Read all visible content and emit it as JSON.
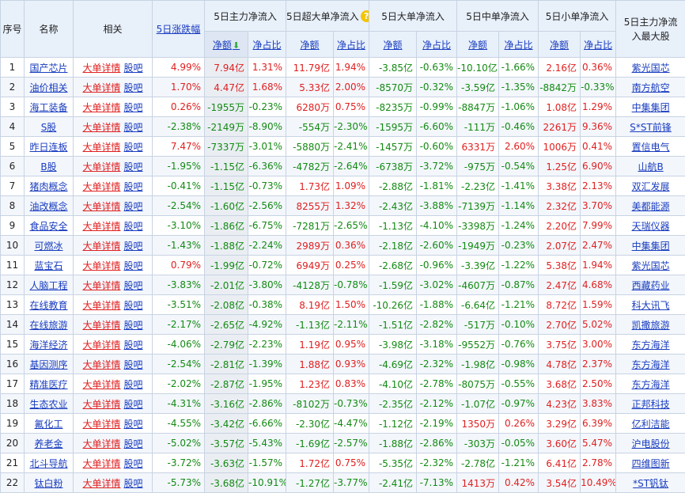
{
  "header": {
    "col_idx": "序号",
    "col_name": "名称",
    "col_related": "相关",
    "col_change": "5日涨跌幅",
    "col_main": "5日主力净流入",
    "col_super": "5日超大单净流入",
    "col_big": "5日大单净流入",
    "col_mid": "5日中单净流入",
    "col_small": "5日小单净流入",
    "col_top": "5日主力净流入最大股",
    "sub_amount": "净额",
    "sub_ratio": "净占比",
    "help_icon": "?",
    "sort_icon": "arrow-down-icon"
  },
  "colors": {
    "up": "#e02020",
    "down": "#138a13",
    "link": "#1a3dbf",
    "header_bg": "#e8f0fa",
    "help": "#f5c400"
  },
  "rows": [
    {
      "idx": "1",
      "name": "国产芯片",
      "detail": "大单详情",
      "bar": "股吧",
      "change": "4.99%",
      "main_amt": "7.94亿",
      "main_pct": "1.31%",
      "super_amt": "11.79亿",
      "super_pct": "1.94%",
      "big_amt": "-3.85亿",
      "big_pct": "-0.63%",
      "mid_amt": "-10.10亿",
      "mid_pct": "-1.66%",
      "small_amt": "2.16亿",
      "small_pct": "0.36%",
      "top": "紫光国芯"
    },
    {
      "idx": "2",
      "name": "油价相关",
      "detail": "大单详情",
      "bar": "股吧",
      "change": "1.70%",
      "main_amt": "4.47亿",
      "main_pct": "1.68%",
      "super_amt": "5.33亿",
      "super_pct": "2.00%",
      "big_amt": "-8570万",
      "big_pct": "-0.32%",
      "mid_amt": "-3.59亿",
      "mid_pct": "-1.35%",
      "small_amt": "-8842万",
      "small_pct": "-0.33%",
      "top": "南方航空"
    },
    {
      "idx": "3",
      "name": "海工装备",
      "detail": "大单详情",
      "bar": "股吧",
      "change": "0.26%",
      "main_amt": "-1955万",
      "main_pct": "-0.23%",
      "super_amt": "6280万",
      "super_pct": "0.75%",
      "big_amt": "-8235万",
      "big_pct": "-0.99%",
      "mid_amt": "-8847万",
      "mid_pct": "-1.06%",
      "small_amt": "1.08亿",
      "small_pct": "1.29%",
      "top": "中集集团"
    },
    {
      "idx": "4",
      "name": "S股",
      "detail": "大单详情",
      "bar": "股吧",
      "change": "-2.38%",
      "main_amt": "-2149万",
      "main_pct": "-8.90%",
      "super_amt": "-554万",
      "super_pct": "-2.30%",
      "big_amt": "-1595万",
      "big_pct": "-6.60%",
      "mid_amt": "-111万",
      "mid_pct": "-0.46%",
      "small_amt": "2261万",
      "small_pct": "9.36%",
      "top": "S*ST前锋"
    },
    {
      "idx": "5",
      "name": "昨日连板",
      "detail": "大单详情",
      "bar": "股吧",
      "change": "7.47%",
      "main_amt": "-7337万",
      "main_pct": "-3.01%",
      "super_amt": "-5880万",
      "super_pct": "-2.41%",
      "big_amt": "-1457万",
      "big_pct": "-0.60%",
      "mid_amt": "6331万",
      "mid_pct": "2.60%",
      "small_amt": "1006万",
      "small_pct": "0.41%",
      "top": "置信电气"
    },
    {
      "idx": "6",
      "name": "B股",
      "detail": "大单详情",
      "bar": "股吧",
      "change": "-1.95%",
      "main_amt": "-1.15亿",
      "main_pct": "-6.36%",
      "super_amt": "-4782万",
      "super_pct": "-2.64%",
      "big_amt": "-6738万",
      "big_pct": "-3.72%",
      "mid_amt": "-975万",
      "mid_pct": "-0.54%",
      "small_amt": "1.25亿",
      "small_pct": "6.90%",
      "top": "山航B"
    },
    {
      "idx": "7",
      "name": "猪肉概念",
      "detail": "大单详情",
      "bar": "股吧",
      "change": "-0.41%",
      "main_amt": "-1.15亿",
      "main_pct": "-0.73%",
      "super_amt": "1.73亿",
      "super_pct": "1.09%",
      "big_amt": "-2.88亿",
      "big_pct": "-1.81%",
      "mid_amt": "-2.23亿",
      "mid_pct": "-1.41%",
      "small_amt": "3.38亿",
      "small_pct": "2.13%",
      "top": "双汇发展"
    },
    {
      "idx": "8",
      "name": "油改概念",
      "detail": "大单详情",
      "bar": "股吧",
      "change": "-2.54%",
      "main_amt": "-1.60亿",
      "main_pct": "-2.56%",
      "super_amt": "8255万",
      "super_pct": "1.32%",
      "big_amt": "-2.43亿",
      "big_pct": "-3.88%",
      "mid_amt": "-7139万",
      "mid_pct": "-1.14%",
      "small_amt": "2.32亿",
      "small_pct": "3.70%",
      "top": "美都能源"
    },
    {
      "idx": "9",
      "name": "食品安全",
      "detail": "大单详情",
      "bar": "股吧",
      "change": "-3.10%",
      "main_amt": "-1.86亿",
      "main_pct": "-6.75%",
      "super_amt": "-7281万",
      "super_pct": "-2.65%",
      "big_amt": "-1.13亿",
      "big_pct": "-4.10%",
      "mid_amt": "-3398万",
      "mid_pct": "-1.24%",
      "small_amt": "2.20亿",
      "small_pct": "7.99%",
      "top": "天瑞仪器"
    },
    {
      "idx": "10",
      "name": "可燃冰",
      "detail": "大单详情",
      "bar": "股吧",
      "change": "-1.43%",
      "main_amt": "-1.88亿",
      "main_pct": "-2.24%",
      "super_amt": "2989万",
      "super_pct": "0.36%",
      "big_amt": "-2.18亿",
      "big_pct": "-2.60%",
      "mid_amt": "-1949万",
      "mid_pct": "-0.23%",
      "small_amt": "2.07亿",
      "small_pct": "2.47%",
      "top": "中集集团"
    },
    {
      "idx": "11",
      "name": "蓝宝石",
      "detail": "大单详情",
      "bar": "股吧",
      "change": "0.79%",
      "main_amt": "-1.99亿",
      "main_pct": "-0.72%",
      "super_amt": "6949万",
      "super_pct": "0.25%",
      "big_amt": "-2.68亿",
      "big_pct": "-0.96%",
      "mid_amt": "-3.39亿",
      "mid_pct": "-1.22%",
      "small_amt": "5.38亿",
      "small_pct": "1.94%",
      "top": "紫光国芯"
    },
    {
      "idx": "12",
      "name": "人脑工程",
      "detail": "大单详情",
      "bar": "股吧",
      "change": "-3.83%",
      "main_amt": "-2.01亿",
      "main_pct": "-3.80%",
      "super_amt": "-4128万",
      "super_pct": "-0.78%",
      "big_amt": "-1.59亿",
      "big_pct": "-3.02%",
      "mid_amt": "-4607万",
      "mid_pct": "-0.87%",
      "small_amt": "2.47亿",
      "small_pct": "4.68%",
      "top": "西藏药业"
    },
    {
      "idx": "13",
      "name": "在线教育",
      "detail": "大单详情",
      "bar": "股吧",
      "change": "-3.51%",
      "main_amt": "-2.08亿",
      "main_pct": "-0.38%",
      "super_amt": "8.19亿",
      "super_pct": "1.50%",
      "big_amt": "-10.26亿",
      "big_pct": "-1.88%",
      "mid_amt": "-6.64亿",
      "mid_pct": "-1.21%",
      "small_amt": "8.72亿",
      "small_pct": "1.59%",
      "top": "科大讯飞"
    },
    {
      "idx": "14",
      "name": "在线旅游",
      "detail": "大单详情",
      "bar": "股吧",
      "change": "-2.17%",
      "main_amt": "-2.65亿",
      "main_pct": "-4.92%",
      "super_amt": "-1.13亿",
      "super_pct": "-2.11%",
      "big_amt": "-1.51亿",
      "big_pct": "-2.82%",
      "mid_amt": "-517万",
      "mid_pct": "-0.10%",
      "small_amt": "2.70亿",
      "small_pct": "5.02%",
      "top": "凯撒旅游"
    },
    {
      "idx": "15",
      "name": "海洋经济",
      "detail": "大单详情",
      "bar": "股吧",
      "change": "-4.06%",
      "main_amt": "-2.79亿",
      "main_pct": "-2.23%",
      "super_amt": "1.19亿",
      "super_pct": "0.95%",
      "big_amt": "-3.98亿",
      "big_pct": "-3.18%",
      "mid_amt": "-9552万",
      "mid_pct": "-0.76%",
      "small_amt": "3.75亿",
      "small_pct": "3.00%",
      "top": "东方海洋"
    },
    {
      "idx": "16",
      "name": "基因测序",
      "detail": "大单详情",
      "bar": "股吧",
      "change": "-2.54%",
      "main_amt": "-2.81亿",
      "main_pct": "-1.39%",
      "super_amt": "1.88亿",
      "super_pct": "0.93%",
      "big_amt": "-4.69亿",
      "big_pct": "-2.32%",
      "mid_amt": "-1.98亿",
      "mid_pct": "-0.98%",
      "small_amt": "4.78亿",
      "small_pct": "2.37%",
      "top": "东方海洋"
    },
    {
      "idx": "17",
      "name": "精准医疗",
      "detail": "大单详情",
      "bar": "股吧",
      "change": "-2.02%",
      "main_amt": "-2.87亿",
      "main_pct": "-1.95%",
      "super_amt": "1.23亿",
      "super_pct": "0.83%",
      "big_amt": "-4.10亿",
      "big_pct": "-2.78%",
      "mid_amt": "-8075万",
      "mid_pct": "-0.55%",
      "small_amt": "3.68亿",
      "small_pct": "2.50%",
      "top": "东方海洋"
    },
    {
      "idx": "18",
      "name": "生态农业",
      "detail": "大单详情",
      "bar": "股吧",
      "change": "-4.31%",
      "main_amt": "-3.16亿",
      "main_pct": "-2.86%",
      "super_amt": "-8102万",
      "super_pct": "-0.73%",
      "big_amt": "-2.35亿",
      "big_pct": "-2.12%",
      "mid_amt": "-1.07亿",
      "mid_pct": "-0.97%",
      "small_amt": "4.23亿",
      "small_pct": "3.83%",
      "top": "正邦科技"
    },
    {
      "idx": "19",
      "name": "氟化工",
      "detail": "大单详情",
      "bar": "股吧",
      "change": "-4.55%",
      "main_amt": "-3.42亿",
      "main_pct": "-6.66%",
      "super_amt": "-2.30亿",
      "super_pct": "-4.47%",
      "big_amt": "-1.12亿",
      "big_pct": "-2.19%",
      "mid_amt": "1350万",
      "mid_pct": "0.26%",
      "small_amt": "3.29亿",
      "small_pct": "6.39%",
      "top": "亿利洁能"
    },
    {
      "idx": "20",
      "name": "养老金",
      "detail": "大单详情",
      "bar": "股吧",
      "change": "-5.02%",
      "main_amt": "-3.57亿",
      "main_pct": "-5.43%",
      "super_amt": "-1.69亿",
      "super_pct": "-2.57%",
      "big_amt": "-1.88亿",
      "big_pct": "-2.86%",
      "mid_amt": "-303万",
      "mid_pct": "-0.05%",
      "small_amt": "3.60亿",
      "small_pct": "5.47%",
      "top": "沪电股份"
    },
    {
      "idx": "21",
      "name": "北斗导航",
      "detail": "大单详情",
      "bar": "股吧",
      "change": "-3.72%",
      "main_amt": "-3.63亿",
      "main_pct": "-1.57%",
      "super_amt": "1.72亿",
      "super_pct": "0.75%",
      "big_amt": "-5.35亿",
      "big_pct": "-2.32%",
      "mid_amt": "-2.78亿",
      "mid_pct": "-1.21%",
      "small_amt": "6.41亿",
      "small_pct": "2.78%",
      "top": "四维图新"
    },
    {
      "idx": "22",
      "name": "钛白粉",
      "detail": "大单详情",
      "bar": "股吧",
      "change": "-5.73%",
      "main_amt": "-3.68亿",
      "main_pct": "-10.91%",
      "super_amt": "-1.27亿",
      "super_pct": "-3.77%",
      "big_amt": "-2.41亿",
      "big_pct": "-7.13%",
      "mid_amt": "1413万",
      "mid_pct": "0.42%",
      "small_amt": "3.54亿",
      "small_pct": "10.49%",
      "top": "*ST钒钛"
    }
  ]
}
